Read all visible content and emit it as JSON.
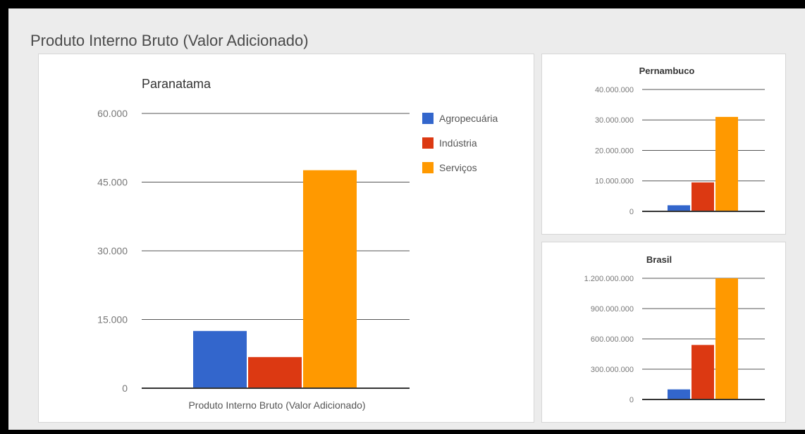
{
  "page": {
    "title": "Produto Interno Bruto (Valor Adicionado)"
  },
  "colors": {
    "agro": "#3366cc",
    "industria": "#dc3912",
    "servicos": "#ff9900"
  },
  "legend": [
    "Agropecuária",
    "Indústria",
    "Serviços"
  ],
  "chart_data": [
    {
      "type": "bar",
      "title": "Paranatama",
      "categories": [
        "Produto Interno Bruto (Valor Adicionado)"
      ],
      "series": [
        {
          "name": "Agropecuária",
          "values": [
            12500
          ]
        },
        {
          "name": "Indústria",
          "values": [
            6800
          ]
        },
        {
          "name": "Serviços",
          "values": [
            47600
          ]
        }
      ],
      "ylim": [
        0,
        60000
      ],
      "yticks": [
        "0",
        "15.000",
        "30.000",
        "45.000",
        "60.000"
      ],
      "grid": true,
      "legend_position": "right"
    },
    {
      "type": "bar",
      "title": "Pernambuco",
      "series": [
        {
          "name": "Agropecuária",
          "values": [
            2000000
          ]
        },
        {
          "name": "Indústria",
          "values": [
            9500000
          ]
        },
        {
          "name": "Serviços",
          "values": [
            31000000
          ]
        }
      ],
      "ylim": [
        0,
        40000000
      ],
      "yticks": [
        "0",
        "10.000.000",
        "20.000.000",
        "30.000.000",
        "40.000.000"
      ],
      "grid": true
    },
    {
      "type": "bar",
      "title": "Brasil",
      "series": [
        {
          "name": "Agropecuária",
          "values": [
            100000000
          ]
        },
        {
          "name": "Indústria",
          "values": [
            540000000
          ]
        },
        {
          "name": "Serviços",
          "values": [
            1200000000
          ]
        }
      ],
      "ylim": [
        0,
        1200000000
      ],
      "yticks": [
        "0",
        "300.000.000",
        "600.000.000",
        "900.000.000",
        "1.200.000.000"
      ],
      "grid": true
    }
  ]
}
